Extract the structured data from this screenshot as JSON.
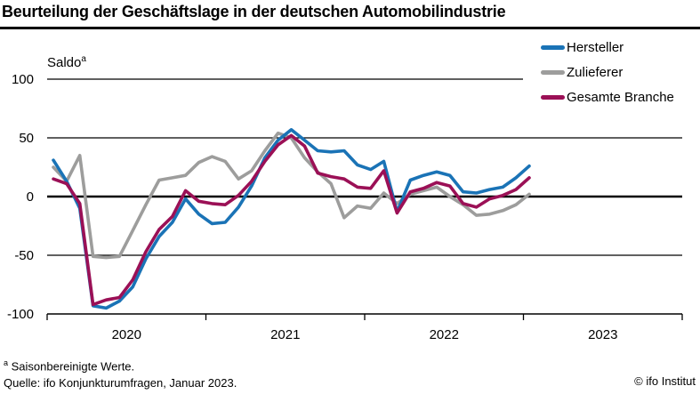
{
  "title": "Beurteilung der Geschäftslage in der deutschen Automobilindustrie",
  "ylabel": {
    "text": "Saldo",
    "sup": "a"
  },
  "legend": [
    {
      "label": "Hersteller",
      "color": "#1a73b6"
    },
    {
      "label": "Zulieferer",
      "color": "#9d9d9c"
    },
    {
      "label": "Gesamte Branche",
      "color": "#9b1056"
    }
  ],
  "footnotes": {
    "marker": "a",
    "line1": "Saisonbereinigte Werte.",
    "line2": "Quelle: ifo Konjunkturumfragen, Januar 2023.",
    "copyright": "© ifo Institut"
  },
  "chart_data": {
    "type": "line",
    "title": "Beurteilung der Geschäftslage in der deutschen Automobilindustrie",
    "ylabel": "Saldo (saisonbereinigte Werte)",
    "ylim": [
      -100,
      100
    ],
    "y_ticks": [
      100,
      50,
      0,
      -50,
      -100
    ],
    "grid": "horizontal",
    "legend_position": "top-right",
    "x_year_labels": [
      "2020",
      "2021",
      "2022",
      "2023"
    ],
    "months": [
      "2020-01",
      "2020-02",
      "2020-03",
      "2020-04",
      "2020-05",
      "2020-06",
      "2020-07",
      "2020-08",
      "2020-09",
      "2020-10",
      "2020-11",
      "2020-12",
      "2021-01",
      "2021-02",
      "2021-03",
      "2021-04",
      "2021-05",
      "2021-06",
      "2021-07",
      "2021-08",
      "2021-09",
      "2021-10",
      "2021-11",
      "2021-12",
      "2022-01",
      "2022-02",
      "2022-03",
      "2022-04",
      "2022-05",
      "2022-06",
      "2022-07",
      "2022-08",
      "2022-09",
      "2022-10",
      "2022-11",
      "2022-12",
      "2023-01"
    ],
    "series": [
      {
        "name": "Hersteller",
        "color": "#1a73b6",
        "values": [
          31,
          13,
          -10,
          -93,
          -95,
          -89,
          -77,
          -53,
          -34,
          -22,
          -2,
          -15,
          -23,
          -22,
          -9,
          9,
          33,
          48,
          57,
          48,
          39,
          38,
          39,
          27,
          23,
          30,
          -13,
          14,
          18,
          21,
          18,
          4,
          3,
          6,
          8,
          16,
          26
        ]
      },
      {
        "name": "Zulieferer",
        "color": "#9d9d9c",
        "values": [
          25,
          13,
          35,
          -51,
          -52,
          -51,
          -29,
          -7,
          14,
          16,
          18,
          29,
          34,
          30,
          15,
          22,
          39,
          54,
          50,
          33,
          21,
          11,
          -18,
          -8,
          -10,
          3,
          -6,
          2,
          5,
          8,
          0,
          -7,
          -16,
          -15,
          -12,
          -7,
          2
        ]
      },
      {
        "name": "Gesamte Branche",
        "color": "#9b1056",
        "values": [
          15,
          11,
          -6,
          -92,
          -88,
          -86,
          -71,
          -47,
          -28,
          -17,
          5,
          -4,
          -6,
          -7,
          1,
          13,
          30,
          44,
          52,
          43,
          20,
          17,
          15,
          8,
          7,
          22,
          -14,
          4,
          7,
          12,
          9,
          -6,
          -9,
          -2,
          1,
          6,
          16
        ]
      }
    ]
  }
}
